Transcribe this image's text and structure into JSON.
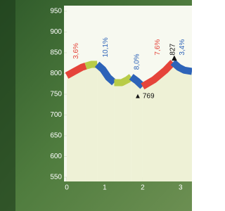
{
  "chart_data": {
    "type": "elevation-profile",
    "segments": [
      {
        "color": "#e5443a",
        "x": [
          0,
          0.2,
          0.4,
          0.5
        ],
        "values": [
          795,
          805,
          815,
          818
        ],
        "grade": "3,6%"
      },
      {
        "color": "#b8cc48",
        "x": [
          0.5,
          0.65,
          0.8
        ],
        "values": [
          818,
          822,
          822
        ]
      },
      {
        "color": "#2d63b8",
        "x": [
          0.8,
          0.95,
          1.1,
          1.25
        ],
        "values": [
          822,
          810,
          790,
          778
        ],
        "grade": "10,1%"
      },
      {
        "color": "#b8cc48",
        "x": [
          1.25,
          1.45,
          1.6,
          1.7
        ],
        "values": [
          778,
          778,
          785,
          792
        ]
      },
      {
        "color": "#2d63b8",
        "x": [
          1.7,
          1.85,
          2.0
        ],
        "values": [
          792,
          782,
          769
        ],
        "grade": "8,0%"
      },
      {
        "color": "#e5443a",
        "x": [
          2.0,
          2.3,
          2.6,
          2.8
        ],
        "values": [
          769,
          785,
          808,
          827
        ],
        "grade": "7,6%"
      },
      {
        "color": "#2d63b8",
        "x": [
          2.8,
          2.95,
          3.1,
          3.3
        ],
        "values": [
          827,
          815,
          808,
          805
        ],
        "grade": "3,4%"
      }
    ],
    "min": {
      "x": 2.0,
      "value": 769
    },
    "max": {
      "x": 2.8,
      "value": 827
    },
    "xlim": [
      0,
      3.3
    ],
    "xticks": [
      0,
      1,
      2,
      3
    ],
    "ylim": [
      550,
      950
    ],
    "yticks": [
      550,
      600,
      650,
      700,
      750,
      800,
      850,
      900,
      950
    ]
  }
}
